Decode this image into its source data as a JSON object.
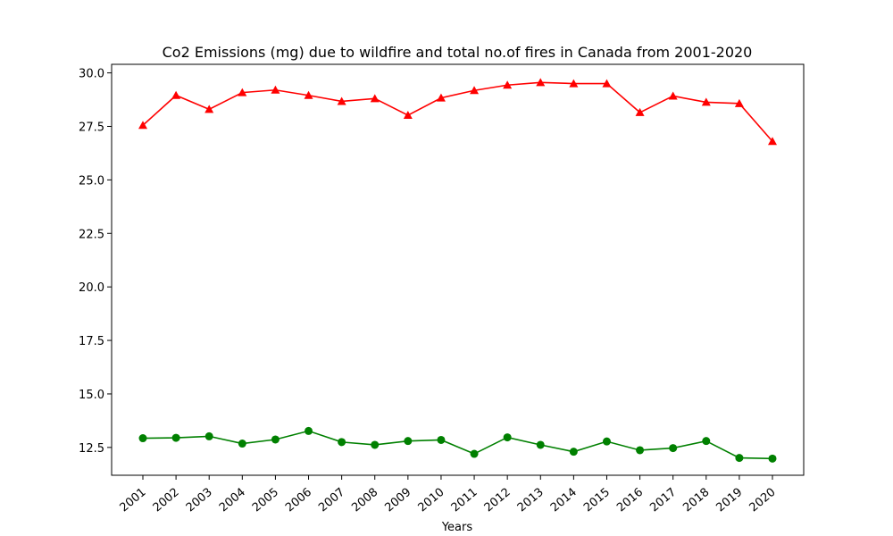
{
  "chart_data": {
    "type": "line",
    "title": "Co2 Emissions (mg) due to wildfire and total no.of fires in Canada from 2001-2020",
    "xlabel": "Years",
    "ylabel": "",
    "categories": [
      "2001",
      "2002",
      "2003",
      "2004",
      "2005",
      "2006",
      "2007",
      "2008",
      "2009",
      "2010",
      "2011",
      "2012",
      "2013",
      "2014",
      "2015",
      "2016",
      "2017",
      "2018",
      "2019",
      "2020"
    ],
    "ylim": [
      11.2,
      30.4
    ],
    "yticks": [
      "12.5",
      "15.0",
      "17.5",
      "20.0",
      "22.5",
      "25.0",
      "27.5",
      "30.0"
    ],
    "grid": false,
    "legend": "none",
    "series": [
      {
        "color": "#ff0000",
        "marker": "triangle",
        "values": [
          27.55,
          28.95,
          28.3,
          29.08,
          29.2,
          28.95,
          28.67,
          28.8,
          28.02,
          28.83,
          29.18,
          29.43,
          29.55,
          29.5,
          29.5,
          28.15,
          28.92,
          28.63,
          28.57,
          26.8
        ]
      },
      {
        "color": "#008000",
        "marker": "circle",
        "values": [
          12.93,
          12.95,
          13.02,
          12.68,
          12.87,
          13.27,
          12.75,
          12.62,
          12.8,
          12.85,
          12.2,
          12.97,
          12.62,
          12.3,
          12.78,
          12.37,
          12.47,
          12.8,
          12.01,
          11.98
        ]
      }
    ]
  }
}
